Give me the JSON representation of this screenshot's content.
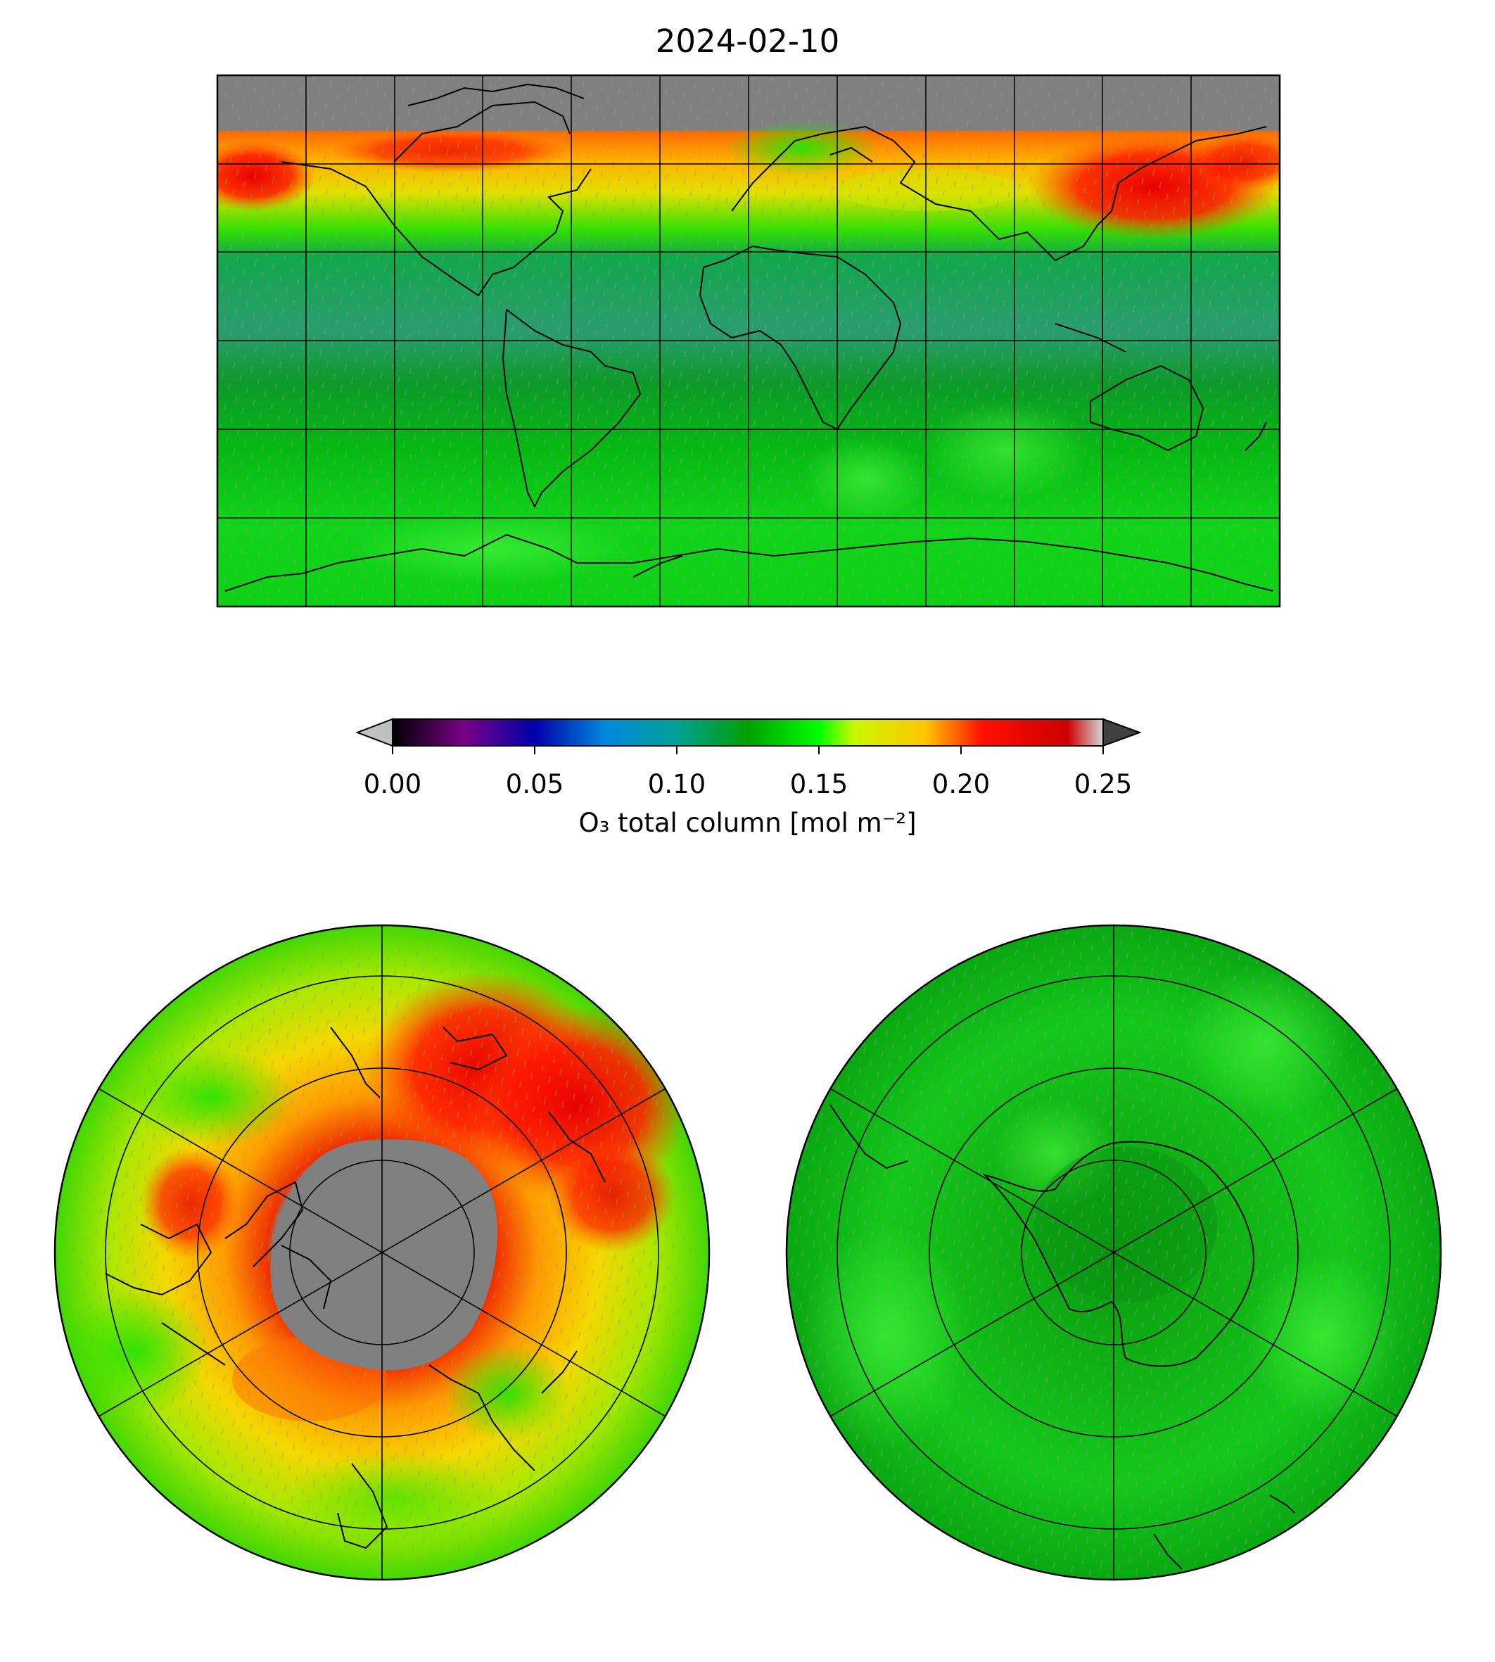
{
  "figure": {
    "title": "2024-02-10",
    "colorbar": {
      "label": "O₃ total column [mol m⁻²]",
      "min": 0.0,
      "max": 0.25,
      "ticks": [
        "0.00",
        "0.05",
        "0.10",
        "0.15",
        "0.20",
        "0.25"
      ],
      "extend": "both",
      "under_color": "#c0c0c0",
      "over_color": "#404040",
      "colors": [
        "#000000",
        "#7a0087",
        "#0000aa",
        "#0089dd",
        "#00a195",
        "#00a000",
        "#00ff00",
        "#ccf700",
        "#ffc500",
        "#ff1000",
        "#cc0000",
        "#d6d6d6"
      ]
    },
    "missing_color": "#808080",
    "panels": {
      "global": "plate-carree",
      "north": "north-polar-stereographic",
      "south": "south-polar-stereographic"
    }
  }
}
